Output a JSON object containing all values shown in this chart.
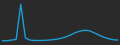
{
  "x": [
    0,
    1,
    2,
    3,
    4,
    5,
    6,
    7,
    8,
    9,
    10,
    11,
    12,
    13,
    14,
    15,
    16,
    17,
    18,
    19,
    20,
    21,
    22,
    23,
    24,
    25
  ],
  "y": [
    2,
    2,
    2.5,
    3,
    28,
    4,
    2.5,
    2.2,
    2.2,
    2.3,
    2.5,
    2.8,
    3.2,
    4,
    5,
    6.5,
    8,
    9,
    9.5,
    9,
    7.5,
    6,
    4.5,
    3.5,
    2.8,
    2.5
  ],
  "line_color": "#1a9ed4",
  "line_width": 1.0,
  "background_color": "#2a2a2a",
  "ylim": [
    -1,
    31
  ],
  "xlim": [
    -0.5,
    25.5
  ]
}
